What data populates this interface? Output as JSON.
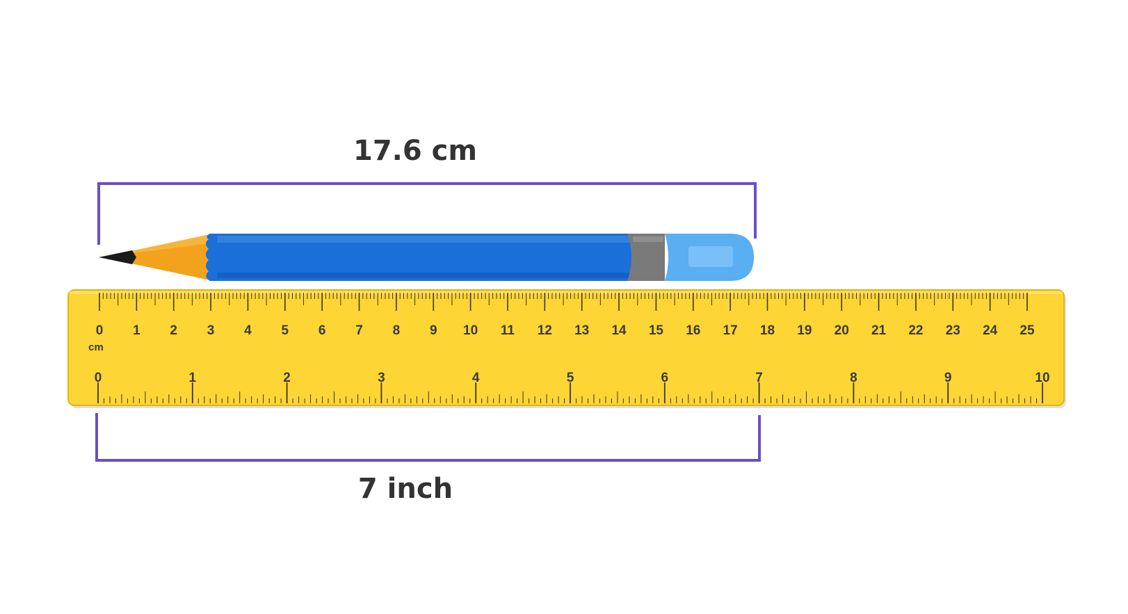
{
  "top_measurement": {
    "label": "17.6 cm",
    "value": 17.6,
    "unit": "cm"
  },
  "bottom_measurement": {
    "label": "7 inch",
    "value": 7,
    "unit": "inch"
  },
  "ruler": {
    "cm_unit_label": "cm",
    "cm_max": 25,
    "inch_max": 10,
    "cm_numbers": [
      "0",
      "1",
      "2",
      "3",
      "4",
      "5",
      "6",
      "7",
      "8",
      "9",
      "10",
      "11",
      "12",
      "13",
      "14",
      "15",
      "16",
      "17",
      "18",
      "19",
      "20",
      "21",
      "22",
      "23",
      "24",
      "25"
    ],
    "inch_numbers": [
      "0",
      "1",
      "2",
      "3",
      "4",
      "5",
      "6",
      "7",
      "8",
      "9",
      "10"
    ]
  },
  "pencil": {
    "length_cm": 17.6
  },
  "colors": {
    "bracket": "#6a4fc4",
    "ruler_fill": "#fdd535",
    "ruler_edge": "#e2b318",
    "tick": "#3f3418",
    "pencil_body": "#1a6fd8",
    "pencil_cap": "#5aaef2",
    "pencil_band": "#7a7a7a",
    "pencil_wood": "#f2a21c",
    "pencil_lead": "#1b1b1b"
  }
}
